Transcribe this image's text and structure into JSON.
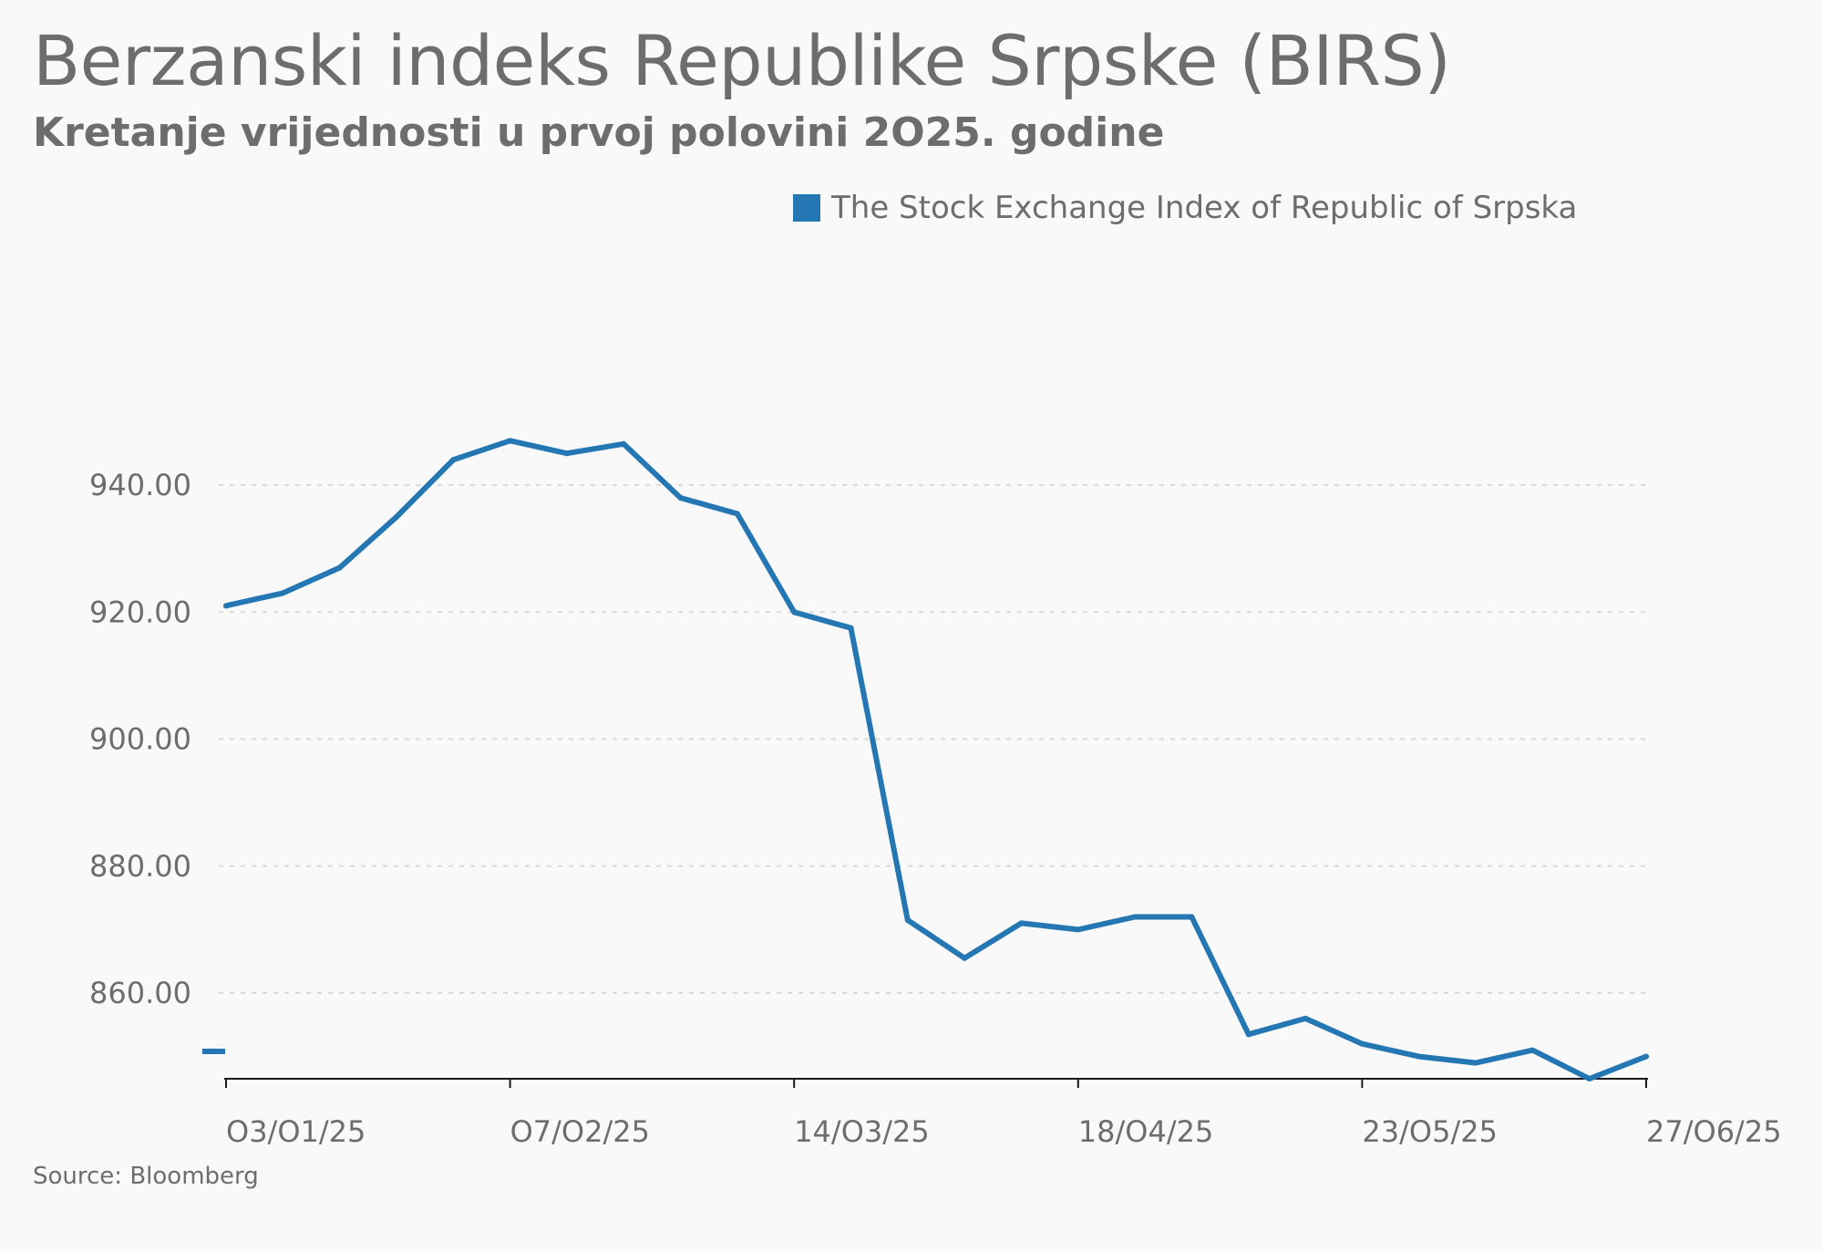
{
  "header": {
    "title": "Berzanski indeks Republike Srpske (BIRS)",
    "subtitle": "Kretanje vrijednosti u prvoj polovini 2O25. godine"
  },
  "source": "Source: Bloomberg",
  "colors": {
    "series": "#2477b3",
    "grid": "#d9d9d9",
    "axis": "#1a1a1a"
  },
  "chart_data": {
    "type": "line",
    "title": "Berzanski indeks Republike Srpske (BIRS)",
    "subtitle": "Kretanje vrijednosti u prvoj polovini 2O25. godine",
    "legend_position": "top-right",
    "grid": "horizontal-dashed",
    "ylim": [
      846.5,
      950
    ],
    "y_ticks": [
      860,
      880,
      900,
      920,
      940
    ],
    "y_tick_labels": [
      "860.00",
      "880.00",
      "900.00",
      "920.00",
      "940.00"
    ],
    "x_tick_labels": [
      "O3/O1/25",
      "O7/O2/25",
      "14/O3/25",
      "18/O4/25",
      "23/O5/25",
      "27/O6/25"
    ],
    "x_tick_dates": [
      "2025-01-03",
      "2025-02-07",
      "2025-03-14",
      "2025-04-18",
      "2025-05-23",
      "2025-06-27"
    ],
    "series": [
      {
        "name": "The Stock Exchange Index of Republic of Srpska",
        "color": "#2477b3",
        "points": [
          {
            "x": "2025-01-03",
            "y": 921.0
          },
          {
            "x": "2025-01-10",
            "y": 923.0
          },
          {
            "x": "2025-01-17",
            "y": 927.0
          },
          {
            "x": "2025-01-24",
            "y": 935.0
          },
          {
            "x": "2025-01-31",
            "y": 944.0
          },
          {
            "x": "2025-02-07",
            "y": 947.0
          },
          {
            "x": "2025-02-14",
            "y": 945.0
          },
          {
            "x": "2025-02-21",
            "y": 946.5
          },
          {
            "x": "2025-02-28",
            "y": 938.0
          },
          {
            "x": "2025-03-07",
            "y": 935.5
          },
          {
            "x": "2025-03-14",
            "y": 920.0
          },
          {
            "x": "2025-03-21",
            "y": 917.5
          },
          {
            "x": "2025-03-28",
            "y": 871.5
          },
          {
            "x": "2025-04-04",
            "y": 865.5
          },
          {
            "x": "2025-04-11",
            "y": 871.0
          },
          {
            "x": "2025-04-18",
            "y": 870.0
          },
          {
            "x": "2025-04-25",
            "y": 872.0
          },
          {
            "x": "2025-05-02",
            "y": 872.0
          },
          {
            "x": "2025-05-09",
            "y": 853.5
          },
          {
            "x": "2025-05-16",
            "y": 856.0
          },
          {
            "x": "2025-05-23",
            "y": 852.0
          },
          {
            "x": "2025-05-30",
            "y": 850.0
          },
          {
            "x": "2025-06-06",
            "y": 849.0
          },
          {
            "x": "2025-06-13",
            "y": 851.0
          },
          {
            "x": "2025-06-20",
            "y": 846.5
          },
          {
            "x": "2025-06-27",
            "y": 850.0
          }
        ]
      }
    ]
  }
}
